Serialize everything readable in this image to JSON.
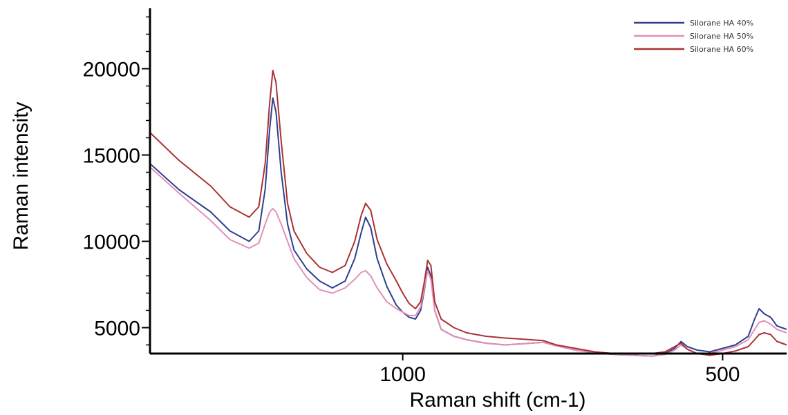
{
  "chart_data": {
    "type": "line",
    "title": "",
    "xlabel": "Raman shift (cm-1)",
    "ylabel": "Raman intensity",
    "x_reversed": true,
    "xlim": [
      1395,
      400
    ],
    "ylim": [
      3500,
      23500
    ],
    "x_ticks": [
      1000,
      500
    ],
    "y_ticks": [
      5000,
      10000,
      15000,
      20000
    ],
    "grid": false,
    "legend_position": "top-right",
    "series": [
      {
        "name": "Silorane HA 40%",
        "color": "#2e3f8f",
        "points": [
          [
            1395,
            14500
          ],
          [
            1350,
            13000
          ],
          [
            1300,
            11700
          ],
          [
            1270,
            10600
          ],
          [
            1240,
            10000
          ],
          [
            1225,
            10600
          ],
          [
            1215,
            13000
          ],
          [
            1208,
            16500
          ],
          [
            1203,
            18300
          ],
          [
            1198,
            17500
          ],
          [
            1190,
            14000
          ],
          [
            1180,
            11000
          ],
          [
            1170,
            9500
          ],
          [
            1150,
            8400
          ],
          [
            1130,
            7700
          ],
          [
            1110,
            7300
          ],
          [
            1090,
            7700
          ],
          [
            1075,
            9000
          ],
          [
            1065,
            10500
          ],
          [
            1058,
            11400
          ],
          [
            1050,
            10800
          ],
          [
            1040,
            9000
          ],
          [
            1025,
            7400
          ],
          [
            1010,
            6300
          ],
          [
            1000,
            5900
          ],
          [
            990,
            5600
          ],
          [
            980,
            5500
          ],
          [
            972,
            6000
          ],
          [
            966,
            7200
          ],
          [
            961,
            8500
          ],
          [
            956,
            8000
          ],
          [
            950,
            6000
          ],
          [
            940,
            4900
          ],
          [
            920,
            4500
          ],
          [
            900,
            4300
          ],
          [
            870,
            4100
          ],
          [
            840,
            4000
          ],
          [
            800,
            4100
          ],
          [
            780,
            4150
          ],
          [
            760,
            3950
          ],
          [
            730,
            3700
          ],
          [
            700,
            3550
          ],
          [
            670,
            3450
          ],
          [
            640,
            3400
          ],
          [
            610,
            3350
          ],
          [
            590,
            3500
          ],
          [
            575,
            3800
          ],
          [
            565,
            4200
          ],
          [
            555,
            3900
          ],
          [
            540,
            3700
          ],
          [
            520,
            3600
          ],
          [
            500,
            3800
          ],
          [
            480,
            4000
          ],
          [
            460,
            4500
          ],
          [
            450,
            5500
          ],
          [
            443,
            6100
          ],
          [
            435,
            5800
          ],
          [
            425,
            5600
          ],
          [
            415,
            5100
          ],
          [
            400,
            4900
          ]
        ]
      },
      {
        "name": "Silorane HA 50%",
        "color": "#e38fb8",
        "points": [
          [
            1395,
            14300
          ],
          [
            1350,
            12800
          ],
          [
            1300,
            11200
          ],
          [
            1270,
            10100
          ],
          [
            1240,
            9600
          ],
          [
            1225,
            9900
          ],
          [
            1215,
            11000
          ],
          [
            1208,
            11700
          ],
          [
            1203,
            11900
          ],
          [
            1198,
            11700
          ],
          [
            1190,
            11000
          ],
          [
            1180,
            10000
          ],
          [
            1170,
            9000
          ],
          [
            1150,
            7900
          ],
          [
            1130,
            7200
          ],
          [
            1110,
            7000
          ],
          [
            1090,
            7300
          ],
          [
            1075,
            7800
          ],
          [
            1065,
            8200
          ],
          [
            1058,
            8300
          ],
          [
            1050,
            8000
          ],
          [
            1040,
            7300
          ],
          [
            1025,
            6500
          ],
          [
            1010,
            6100
          ],
          [
            1000,
            5900
          ],
          [
            990,
            5700
          ],
          [
            980,
            5700
          ],
          [
            972,
            6200
          ],
          [
            966,
            7300
          ],
          [
            961,
            8300
          ],
          [
            956,
            7800
          ],
          [
            950,
            6000
          ],
          [
            940,
            4900
          ],
          [
            920,
            4500
          ],
          [
            900,
            4300
          ],
          [
            870,
            4100
          ],
          [
            840,
            4000
          ],
          [
            800,
            4100
          ],
          [
            780,
            4150
          ],
          [
            760,
            3950
          ],
          [
            730,
            3700
          ],
          [
            700,
            3550
          ],
          [
            670,
            3450
          ],
          [
            640,
            3400
          ],
          [
            610,
            3350
          ],
          [
            590,
            3450
          ],
          [
            575,
            3700
          ],
          [
            565,
            4000
          ],
          [
            555,
            3750
          ],
          [
            540,
            3500
          ],
          [
            520,
            3500
          ],
          [
            500,
            3700
          ],
          [
            480,
            3900
          ],
          [
            460,
            4300
          ],
          [
            450,
            4900
          ],
          [
            443,
            5300
          ],
          [
            435,
            5400
          ],
          [
            425,
            5200
          ],
          [
            415,
            4900
          ],
          [
            400,
            4700
          ]
        ]
      },
      {
        "name": "Silorane HA 60%",
        "color": "#a93232",
        "points": [
          [
            1395,
            16300
          ],
          [
            1350,
            14700
          ],
          [
            1300,
            13200
          ],
          [
            1270,
            12000
          ],
          [
            1240,
            11400
          ],
          [
            1225,
            12000
          ],
          [
            1215,
            14500
          ],
          [
            1208,
            18000
          ],
          [
            1203,
            19900
          ],
          [
            1198,
            19200
          ],
          [
            1190,
            15800
          ],
          [
            1180,
            12200
          ],
          [
            1170,
            10600
          ],
          [
            1150,
            9300
          ],
          [
            1130,
            8500
          ],
          [
            1110,
            8200
          ],
          [
            1090,
            8600
          ],
          [
            1075,
            10000
          ],
          [
            1065,
            11500
          ],
          [
            1058,
            12200
          ],
          [
            1050,
            11800
          ],
          [
            1040,
            10100
          ],
          [
            1025,
            8700
          ],
          [
            1010,
            7700
          ],
          [
            1000,
            7000
          ],
          [
            990,
            6400
          ],
          [
            980,
            6100
          ],
          [
            972,
            6500
          ],
          [
            966,
            7700
          ],
          [
            961,
            8900
          ],
          [
            956,
            8600
          ],
          [
            950,
            6500
          ],
          [
            940,
            5500
          ],
          [
            920,
            5000
          ],
          [
            900,
            4700
          ],
          [
            870,
            4500
          ],
          [
            840,
            4400
          ],
          [
            800,
            4300
          ],
          [
            780,
            4250
          ],
          [
            760,
            4000
          ],
          [
            730,
            3800
          ],
          [
            700,
            3600
          ],
          [
            670,
            3500
          ],
          [
            640,
            3500
          ],
          [
            610,
            3500
          ],
          [
            590,
            3600
          ],
          [
            575,
            3900
          ],
          [
            565,
            4100
          ],
          [
            555,
            3750
          ],
          [
            540,
            3500
          ],
          [
            520,
            3400
          ],
          [
            500,
            3500
          ],
          [
            480,
            3650
          ],
          [
            460,
            3900
          ],
          [
            450,
            4300
          ],
          [
            443,
            4600
          ],
          [
            435,
            4700
          ],
          [
            425,
            4600
          ],
          [
            415,
            4200
          ],
          [
            400,
            4000
          ]
        ]
      }
    ]
  }
}
